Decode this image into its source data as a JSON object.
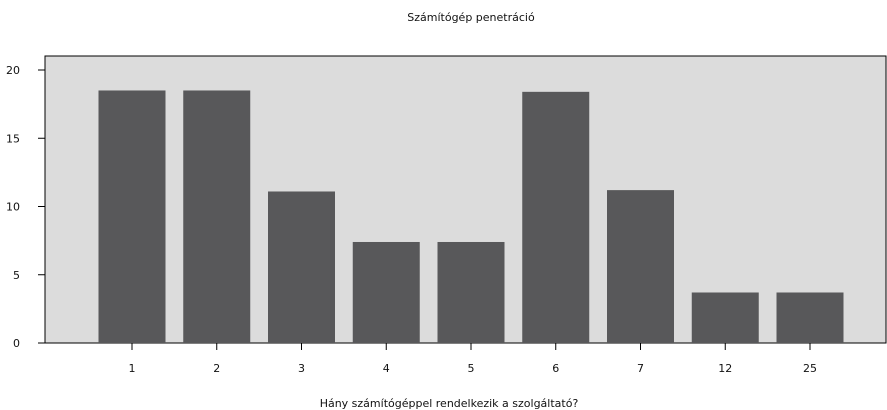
{
  "chart_data": {
    "type": "bar",
    "title": "Számítógép penetráció",
    "xlabel": "Hány számítógéppel rendelkezik a szolgáltató?",
    "ylabel": "",
    "categories": [
      "1",
      "2",
      "3",
      "4",
      "5",
      "6",
      "7",
      "12",
      "25"
    ],
    "values": [
      18.5,
      18.5,
      11.1,
      7.4,
      7.4,
      18.4,
      11.2,
      3.7,
      3.7
    ],
    "ylim": [
      0,
      20
    ],
    "yticks": [
      0,
      5,
      10,
      15,
      20
    ],
    "grid": false,
    "legend": "none",
    "colors": {
      "bar": "#58585a",
      "plot_background": "#dcdcdc",
      "axis": "#000000"
    }
  }
}
